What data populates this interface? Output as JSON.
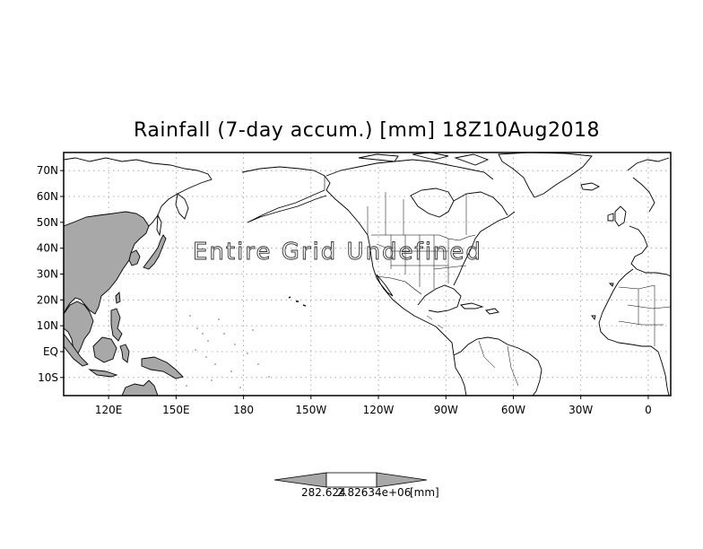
{
  "title": "Rainfall (7-day accum.) [mm] 18Z10Aug2018",
  "overlay_text": "Entire Grid Undefined",
  "map": {
    "projection": "latlon",
    "lon_range": [
      100,
      370
    ],
    "lat_range": [
      -17,
      77
    ],
    "grid": true,
    "lat_ticks": [
      {
        "lat": 70,
        "label": "70N"
      },
      {
        "lat": 60,
        "label": "60N"
      },
      {
        "lat": 50,
        "label": "50N"
      },
      {
        "lat": 40,
        "label": "40N"
      },
      {
        "lat": 30,
        "label": "30N"
      },
      {
        "lat": 20,
        "label": "20N"
      },
      {
        "lat": 10,
        "label": "10N"
      },
      {
        "lat": 0,
        "label": "EQ"
      },
      {
        "lat": -10,
        "label": "10S"
      }
    ],
    "lon_ticks": [
      {
        "lon": 120,
        "label": "120E"
      },
      {
        "lon": 150,
        "label": "150E"
      },
      {
        "lon": 180,
        "label": "180"
      },
      {
        "lon": 210,
        "label": "150W"
      },
      {
        "lon": 240,
        "label": "120W"
      },
      {
        "lon": 270,
        "label": "90W"
      },
      {
        "lon": 300,
        "label": "60W"
      },
      {
        "lon": 330,
        "label": "30W"
      },
      {
        "lon": 360,
        "label": "0"
      }
    ],
    "shaded_fill": "#a8a8a8",
    "grid_color": "#9a9a9a"
  },
  "colorbar": {
    "fill_color": "#a8a8a8",
    "label_left": "282.624",
    "label_mid": "2.82634e+06",
    "unit": "[mm]"
  }
}
